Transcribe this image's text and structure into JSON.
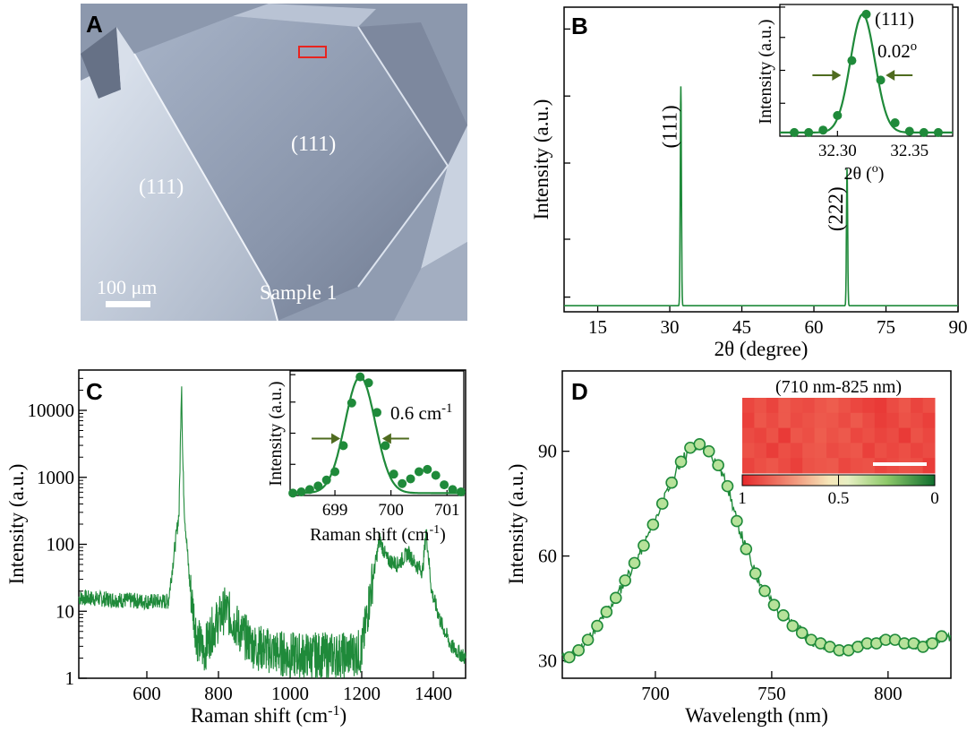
{
  "panels": {
    "A": {
      "label": "A",
      "face_labels": [
        "(111)",
        "(111)"
      ],
      "scale_bar": "100 μm",
      "sample": "Sample 1"
    },
    "B": {
      "label": "B"
    },
    "C": {
      "label": "C"
    },
    "D": {
      "label": "D"
    }
  },
  "chart_data": [
    {
      "id": "B-main",
      "type": "line",
      "xlabel": "2θ (degree)",
      "ylabel": "Intensity (a.u.)",
      "xlim": [
        8,
        90
      ],
      "ylim": [
        0,
        1.0
      ],
      "xticks": [
        "15",
        "30",
        "45",
        "60",
        "75",
        "90"
      ],
      "xtick_values": [
        15,
        30,
        45,
        60,
        75,
        90
      ],
      "peaks": [
        {
          "x": 32.3,
          "height": 0.72,
          "label": "(111)"
        },
        {
          "x": 66.9,
          "height": 0.45,
          "label": "(222)"
        }
      ],
      "color": "#1f8a3a"
    },
    {
      "id": "B-inset",
      "type": "line",
      "xlabel": "2θ (o)",
      "ylabel": "Intensity (a.u.)",
      "xlim": [
        32.26,
        32.38
      ],
      "ylim": [
        0,
        1.08
      ],
      "xticks": [
        "32.30",
        "32.35"
      ],
      "xtick_values": [
        32.3,
        32.35
      ],
      "peak_label": "(111)",
      "fwhm_label": "0.02o",
      "x": [
        32.27,
        32.28,
        32.29,
        32.3,
        32.31,
        32.32,
        32.33,
        32.34,
        32.35,
        32.36,
        32.37
      ],
      "y": [
        0.03,
        0.03,
        0.05,
        0.17,
        0.62,
        1.0,
        0.46,
        0.11,
        0.04,
        0.03,
        0.03
      ],
      "color": "#1f8a3a"
    },
    {
      "id": "C-main",
      "type": "line",
      "scale": "log",
      "xlabel": "Raman shift (cm-1)",
      "ylabel": "Intensity (a.u.)",
      "xlim": [
        410,
        1490
      ],
      "ylim": [
        1,
        40000
      ],
      "xticks": [
        "600",
        "800",
        "1000",
        "1200",
        "1400"
      ],
      "xtick_values": [
        600,
        800,
        1000,
        1200,
        1400
      ],
      "yticks": [
        "1",
        "10",
        "100",
        "1000",
        "10000"
      ],
      "ytick_values": [
        1,
        10,
        100,
        1000,
        10000
      ],
      "x": [
        410,
        500,
        600,
        660,
        690,
        697,
        700,
        705,
        720,
        740,
        760,
        780,
        820,
        860,
        900,
        950,
        1000,
        1050,
        1100,
        1150,
        1200,
        1225,
        1250,
        1270,
        1300,
        1330,
        1350,
        1370,
        1380,
        1395,
        1420,
        1450,
        1490
      ],
      "y": [
        16,
        15,
        14,
        14,
        300,
        30000,
        2000,
        300,
        25,
        4,
        2.5,
        5,
        11,
        5,
        3,
        2.5,
        2.2,
        2.2,
        2.2,
        2.2,
        2.5,
        20,
        120,
        60,
        50,
        75,
        50,
        40,
        160,
        20,
        7,
        3,
        2
      ],
      "color": "#1f8a3a"
    },
    {
      "id": "C-inset",
      "type": "line",
      "xlabel": "Raman shift (cm-1)",
      "ylabel": "Intensity (a.u.)",
      "xlim": [
        698.2,
        701.3
      ],
      "ylim": [
        0,
        1.05
      ],
      "xticks": [
        "699",
        "700",
        "701"
      ],
      "xtick_values": [
        699,
        700,
        701
      ],
      "fwhm_label": "0.6 cm-1",
      "x": [
        698.25,
        698.4,
        698.55,
        698.7,
        698.85,
        699.0,
        699.15,
        699.3,
        699.45,
        699.6,
        699.75,
        699.9,
        700.05,
        700.2,
        700.35,
        700.5,
        700.65,
        700.8,
        700.95,
        701.1,
        701.25
      ],
      "y": [
        0.02,
        0.03,
        0.05,
        0.08,
        0.13,
        0.2,
        0.42,
        0.78,
        1.0,
        0.95,
        0.7,
        0.42,
        0.18,
        0.1,
        0.14,
        0.2,
        0.22,
        0.17,
        0.09,
        0.05,
        0.03
      ],
      "color": "#1f8a3a"
    },
    {
      "id": "D-main",
      "type": "scatter",
      "xlabel": "Wavelength (nm)",
      "ylabel": "Intensity (a.u.)",
      "xlim": [
        660,
        827
      ],
      "ylim": [
        25,
        113
      ],
      "xticks": [
        "700",
        "750",
        "800"
      ],
      "xtick_values": [
        700,
        750,
        800
      ],
      "yticks": [
        "30",
        "60",
        "90"
      ],
      "ytick_values": [
        30,
        60,
        90
      ],
      "x": [
        663,
        667,
        671,
        675,
        679,
        683,
        687,
        691,
        695,
        699,
        703,
        707,
        711,
        715,
        719,
        723,
        727,
        731,
        735,
        739,
        743,
        747,
        751,
        755,
        759,
        763,
        767,
        771,
        775,
        779,
        783,
        787,
        791,
        795,
        799,
        803,
        807,
        811,
        815,
        819,
        823
      ],
      "y": [
        31,
        33,
        36,
        40,
        44,
        48,
        53,
        58,
        63,
        69,
        75,
        81,
        87,
        91,
        92,
        90,
        86,
        80,
        70,
        62,
        55,
        50,
        46,
        43,
        40,
        38,
        36,
        35,
        34,
        33,
        33,
        34,
        35,
        35,
        36,
        36,
        35,
        35,
        34,
        35,
        37
      ],
      "color": "#1f8a3a",
      "marker_color": "#b7e29a"
    },
    {
      "id": "D-inset",
      "type": "heatmap",
      "title": "(710 nm-825 nm)",
      "colorbar_ticks": [
        "1",
        "0.5",
        "0"
      ],
      "colorbar_values": [
        1,
        0.5,
        0
      ],
      "values": [
        [
          0.91,
          0.88,
          0.92,
          0.86,
          0.89,
          0.9,
          0.87,
          0.85,
          0.88,
          0.91,
          0.93,
          0.95,
          0.9,
          0.87,
          0.92,
          0.89
        ],
        [
          0.93,
          0.87,
          0.9,
          0.86,
          0.9,
          0.88,
          0.86,
          0.87,
          0.9,
          0.86,
          0.9,
          0.94,
          0.92,
          0.88,
          0.9,
          0.93
        ],
        [
          0.9,
          0.92,
          0.88,
          0.95,
          0.87,
          0.89,
          0.85,
          0.88,
          0.86,
          0.91,
          0.89,
          0.92,
          0.9,
          0.95,
          0.88,
          0.91
        ],
        [
          0.88,
          0.9,
          0.94,
          0.89,
          0.91,
          0.87,
          0.86,
          0.9,
          0.88,
          0.87,
          0.93,
          0.89,
          0.91,
          0.89,
          0.92,
          0.9
        ],
        [
          0.92,
          0.89,
          0.87,
          0.9,
          0.93,
          0.88,
          0.87,
          0.86,
          0.91,
          0.89,
          0.88,
          0.92,
          0.9,
          0.88,
          0.89,
          0.94
        ]
      ]
    }
  ]
}
